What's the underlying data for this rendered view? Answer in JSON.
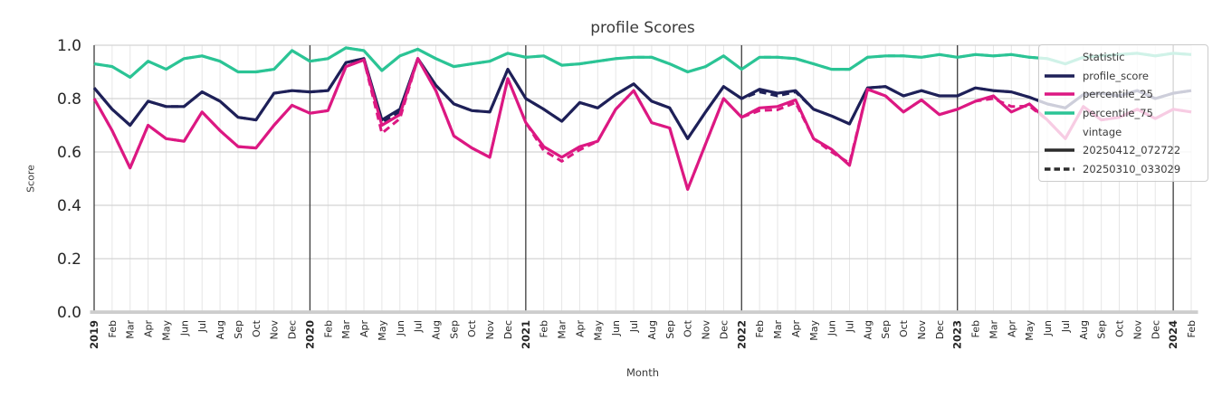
{
  "title": "profile Scores",
  "axes": {
    "y_label": "Score",
    "x_label": "Month",
    "y_ticks": [
      "0.0",
      "0.2",
      "0.4",
      "0.6",
      "0.8",
      "1.0"
    ],
    "x_tick_labels": [
      "2019",
      "Feb",
      "Mar",
      "Apr",
      "May",
      "Jun",
      "Jul",
      "Aug",
      "Sep",
      "Oct",
      "Nov",
      "Dec",
      "2020",
      "Feb",
      "Mar",
      "Apr",
      "May",
      "Jun",
      "Jul",
      "Aug",
      "Sep",
      "Oct",
      "Nov",
      "Dec",
      "2021",
      "Feb",
      "Mar",
      "Apr",
      "May",
      "Jun",
      "Jul",
      "Aug",
      "Sep",
      "Oct",
      "Nov",
      "Dec",
      "2022",
      "Feb",
      "Mar",
      "Apr",
      "May",
      "Jun",
      "Jul",
      "Aug",
      "Sep",
      "Oct",
      "Nov",
      "Dec",
      "2023",
      "Feb",
      "Mar",
      "Apr",
      "May",
      "Jun",
      "Jul",
      "Aug",
      "Sep",
      "Oct",
      "Nov",
      "Dec",
      "2024",
      "Feb"
    ],
    "year_line_indices": [
      0,
      12,
      24,
      36,
      48,
      60
    ]
  },
  "legend": {
    "statistic_header": "Statistic",
    "vintage_header": "vintage",
    "statistics": [
      {
        "label": "profile_score",
        "color": "#1e2058"
      },
      {
        "label": "percentile_25",
        "color": "#dc1882"
      },
      {
        "label": "percentile_75",
        "color": "#2bc495"
      }
    ],
    "vintages": [
      {
        "label": "20250412_072722",
        "style": "solid",
        "color": "#2b2b2b"
      },
      {
        "label": "20250310_033029",
        "style": "dashed",
        "color": "#2b2b2b"
      }
    ]
  },
  "colors": {
    "profile_score": "#1e2058",
    "percentile_25": "#dc1882",
    "percentile_75": "#2bc495",
    "grid_major": "#d4d4d4",
    "grid_minor": "#e6e6e6",
    "year_line": "#3d3d3d",
    "bottom_spine": "#cdcdcd",
    "tick_text": "#262626",
    "title_text": "#3a3a3a"
  },
  "chart_data": {
    "type": "line",
    "title": "profile Scores",
    "xlabel": "Month",
    "ylabel": "Score",
    "ylim": [
      0.0,
      1.0
    ],
    "x_range": "Jan 2019 - Feb 2024",
    "grid": true,
    "legend_position": "upper right",
    "series": [
      {
        "name": "profile_score",
        "vintage": "20250412_072722",
        "style": "solid",
        "color": "#1e2058",
        "values": [
          0.84,
          0.76,
          0.7,
          0.79,
          0.77,
          0.77,
          0.825,
          0.79,
          0.73,
          0.72,
          0.82,
          0.83,
          0.825,
          0.83,
          0.935,
          0.95,
          0.72,
          0.76,
          0.95,
          0.85,
          0.78,
          0.755,
          0.75,
          0.91,
          0.8,
          0.76,
          0.715,
          0.785,
          0.765,
          0.815,
          0.855,
          0.79,
          0.765,
          0.65,
          0.75,
          0.845,
          0.8,
          0.835,
          0.82,
          0.83,
          0.76,
          0.735,
          0.705,
          0.84,
          0.845,
          0.81,
          0.83,
          0.81,
          0.81,
          0.84,
          0.83,
          0.825,
          0.805,
          0.78,
          0.765,
          0.815,
          0.82,
          0.81,
          0.83,
          0.8,
          0.82,
          0.83
        ]
      },
      {
        "name": "profile_score",
        "vintage": "20250310_033029",
        "style": "dashed",
        "color": "#1e2058",
        "values": [
          0.84,
          0.76,
          0.7,
          0.79,
          0.77,
          0.77,
          0.825,
          0.79,
          0.73,
          0.72,
          0.82,
          0.83,
          0.825,
          0.83,
          0.935,
          0.95,
          0.71,
          0.75,
          0.95,
          0.85,
          0.78,
          0.755,
          0.75,
          0.91,
          0.8,
          0.76,
          0.715,
          0.785,
          0.765,
          0.815,
          0.855,
          0.79,
          0.765,
          0.65,
          0.75,
          0.845,
          0.8,
          0.825,
          0.81,
          0.825,
          0.76,
          0.735,
          0.705,
          0.84,
          0.845,
          0.81,
          0.83,
          0.81,
          0.81,
          0.84,
          0.83,
          0.825,
          0.805,
          0.78,
          0.765,
          0.815,
          0.82,
          0.81,
          0.83,
          0.8,
          0.82,
          0.83
        ]
      },
      {
        "name": "percentile_25",
        "vintage": "20250412_072722",
        "style": "solid",
        "color": "#dc1882",
        "values": [
          0.8,
          0.68,
          0.54,
          0.7,
          0.65,
          0.64,
          0.75,
          0.68,
          0.62,
          0.615,
          0.7,
          0.775,
          0.745,
          0.755,
          0.92,
          0.945,
          0.7,
          0.74,
          0.95,
          0.83,
          0.66,
          0.615,
          0.58,
          0.875,
          0.71,
          0.62,
          0.58,
          0.62,
          0.64,
          0.76,
          0.83,
          0.71,
          0.69,
          0.46,
          0.63,
          0.8,
          0.73,
          0.765,
          0.77,
          0.795,
          0.65,
          0.61,
          0.55,
          0.835,
          0.81,
          0.75,
          0.795,
          0.74,
          0.76,
          0.79,
          0.81,
          0.75,
          0.78,
          0.72,
          0.65,
          0.77,
          0.72,
          0.73,
          0.76,
          0.725,
          0.76,
          0.75
        ]
      },
      {
        "name": "percentile_25",
        "vintage": "20250310_033029",
        "style": "dashed",
        "color": "#dc1882",
        "values": [
          0.8,
          0.68,
          0.54,
          0.7,
          0.65,
          0.64,
          0.75,
          0.68,
          0.62,
          0.615,
          0.7,
          0.775,
          0.745,
          0.755,
          0.92,
          0.945,
          0.67,
          0.725,
          0.95,
          0.83,
          0.66,
          0.615,
          0.58,
          0.875,
          0.71,
          0.605,
          0.565,
          0.608,
          0.64,
          0.76,
          0.83,
          0.71,
          0.69,
          0.46,
          0.63,
          0.8,
          0.73,
          0.755,
          0.758,
          0.785,
          0.65,
          0.6,
          0.558,
          0.835,
          0.81,
          0.75,
          0.795,
          0.74,
          0.76,
          0.79,
          0.8,
          0.77,
          0.772,
          0.72,
          0.65,
          0.77,
          0.72,
          0.73,
          0.76,
          0.725,
          0.76,
          0.75
        ]
      },
      {
        "name": "percentile_75",
        "vintage": "20250412_072722",
        "style": "solid",
        "color": "#2bc495",
        "values": [
          0.93,
          0.92,
          0.88,
          0.94,
          0.91,
          0.95,
          0.96,
          0.94,
          0.9,
          0.9,
          0.91,
          0.98,
          0.94,
          0.95,
          0.99,
          0.98,
          0.905,
          0.96,
          0.985,
          0.95,
          0.92,
          0.93,
          0.94,
          0.97,
          0.955,
          0.96,
          0.925,
          0.93,
          0.94,
          0.95,
          0.955,
          0.955,
          0.93,
          0.9,
          0.92,
          0.96,
          0.91,
          0.955,
          0.955,
          0.95,
          0.93,
          0.91,
          0.91,
          0.955,
          0.96,
          0.96,
          0.955,
          0.965,
          0.955,
          0.965,
          0.96,
          0.965,
          0.955,
          0.95,
          0.93,
          0.955,
          0.96,
          0.965,
          0.97,
          0.96,
          0.97,
          0.965
        ]
      },
      {
        "name": "percentile_75",
        "vintage": "20250310_033029",
        "style": "dashed",
        "color": "#2bc495",
        "values": [
          0.93,
          0.92,
          0.88,
          0.94,
          0.91,
          0.95,
          0.96,
          0.94,
          0.9,
          0.9,
          0.91,
          0.98,
          0.94,
          0.95,
          0.99,
          0.98,
          0.905,
          0.96,
          0.985,
          0.95,
          0.92,
          0.93,
          0.94,
          0.97,
          0.955,
          0.96,
          0.925,
          0.93,
          0.94,
          0.95,
          0.955,
          0.955,
          0.93,
          0.9,
          0.92,
          0.96,
          0.91,
          0.955,
          0.955,
          0.95,
          0.93,
          0.91,
          0.91,
          0.955,
          0.96,
          0.96,
          0.955,
          0.965,
          0.955,
          0.965,
          0.96,
          0.965,
          0.955,
          0.95,
          0.93,
          0.955,
          0.96,
          0.965,
          0.97,
          0.96,
          0.97,
          0.965
        ]
      }
    ]
  }
}
